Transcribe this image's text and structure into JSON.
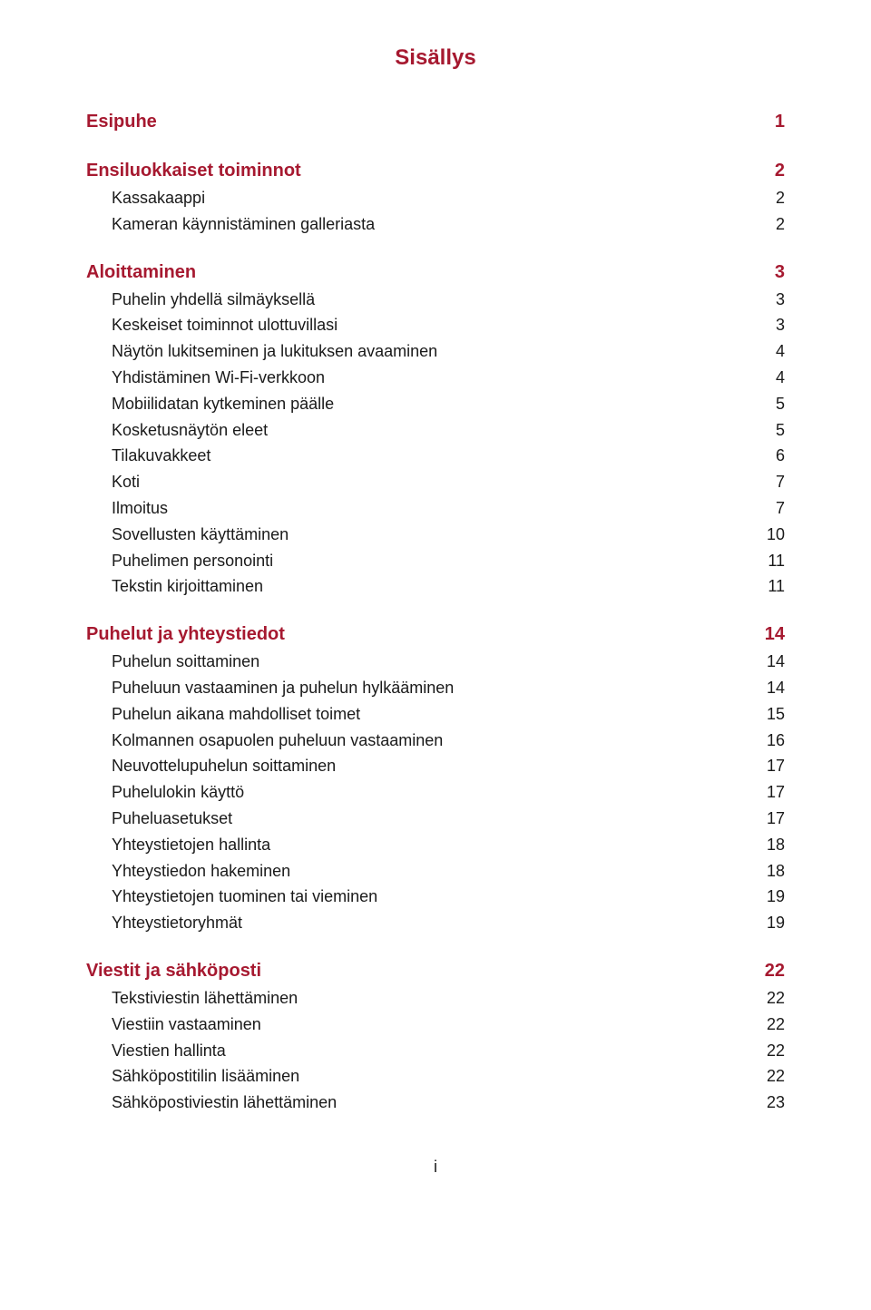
{
  "title": "Sisällys",
  "title_color": "#a61930",
  "title_fontsize": 24,
  "title_weight": "bold",
  "heading_color": "#a61930",
  "heading_fontsize": 20,
  "heading_weight": "bold",
  "body_color": "#1a1a1a",
  "body_fontsize": 18,
  "body_weight": "normal",
  "leader_color": "#1a1a1a",
  "footer_text": "i",
  "footer_color": "#1a1a1a",
  "footer_fontsize": 18,
  "entries": [
    {
      "label": "Esipuhe",
      "page": "1",
      "level": 0,
      "style": "heading"
    },
    {
      "gap": true
    },
    {
      "label": "Ensiluokkaiset toiminnot",
      "page": "2",
      "level": 0,
      "style": "heading"
    },
    {
      "label": "Kassakaappi",
      "page": "2",
      "level": 1,
      "style": "body"
    },
    {
      "label": "Kameran käynnistäminen galleriasta",
      "page": "2",
      "level": 1,
      "style": "body"
    },
    {
      "gap": true
    },
    {
      "label": "Aloittaminen",
      "page": "3",
      "level": 0,
      "style": "heading"
    },
    {
      "label": "Puhelin yhdellä silmäyksellä",
      "page": "3",
      "level": 1,
      "style": "body"
    },
    {
      "label": "Keskeiset toiminnot ulottuvillasi",
      "page": "3",
      "level": 1,
      "style": "body"
    },
    {
      "label": "Näytön lukitseminen ja lukituksen avaaminen",
      "page": "4",
      "level": 1,
      "style": "body"
    },
    {
      "label": "Yhdistäminen Wi-Fi-verkkoon",
      "page": "4",
      "level": 1,
      "style": "body"
    },
    {
      "label": "Mobiilidatan kytkeminen päälle",
      "page": "5",
      "level": 1,
      "style": "body"
    },
    {
      "label": "Kosketusnäytön eleet",
      "page": "5",
      "level": 1,
      "style": "body"
    },
    {
      "label": "Tilakuvakkeet",
      "page": "6",
      "level": 1,
      "style": "body"
    },
    {
      "label": "Koti",
      "page": "7",
      "level": 1,
      "style": "body"
    },
    {
      "label": "Ilmoitus",
      "page": "7",
      "level": 1,
      "style": "body"
    },
    {
      "label": "Sovellusten käyttäminen",
      "page": "10",
      "level": 1,
      "style": "body"
    },
    {
      "label": "Puhelimen personointi",
      "page": "11",
      "level": 1,
      "style": "body"
    },
    {
      "label": "Tekstin kirjoittaminen",
      "page": "11",
      "level": 1,
      "style": "body"
    },
    {
      "gap": true
    },
    {
      "label": "Puhelut ja yhteystiedot",
      "page": "14",
      "level": 0,
      "style": "heading"
    },
    {
      "label": "Puhelun soittaminen",
      "page": "14",
      "level": 1,
      "style": "body"
    },
    {
      "label": "Puheluun vastaaminen ja puhelun hylkääminen",
      "page": "14",
      "level": 1,
      "style": "body"
    },
    {
      "label": "Puhelun aikana mahdolliset toimet",
      "page": "15",
      "level": 1,
      "style": "body"
    },
    {
      "label": "Kolmannen osapuolen puheluun vastaaminen",
      "page": "16",
      "level": 1,
      "style": "body"
    },
    {
      "label": "Neuvottelupuhelun soittaminen",
      "page": "17",
      "level": 1,
      "style": "body"
    },
    {
      "label": "Puhelulokin käyttö",
      "page": "17",
      "level": 1,
      "style": "body"
    },
    {
      "label": "Puheluasetukset",
      "page": "17",
      "level": 1,
      "style": "body"
    },
    {
      "label": "Yhteystietojen hallinta",
      "page": "18",
      "level": 1,
      "style": "body"
    },
    {
      "label": "Yhteystiedon hakeminen",
      "page": "18",
      "level": 1,
      "style": "body"
    },
    {
      "label": "Yhteystietojen tuominen tai vieminen",
      "page": "19",
      "level": 1,
      "style": "body"
    },
    {
      "label": "Yhteystietoryhmät",
      "page": "19",
      "level": 1,
      "style": "body"
    },
    {
      "gap": true
    },
    {
      "label": "Viestit ja sähköposti",
      "page": "22",
      "level": 0,
      "style": "heading"
    },
    {
      "label": "Tekstiviestin lähettäminen",
      "page": "22",
      "level": 1,
      "style": "body"
    },
    {
      "label": "Viestiin vastaaminen",
      "page": "22",
      "level": 1,
      "style": "body"
    },
    {
      "label": "Viestien hallinta",
      "page": "22",
      "level": 1,
      "style": "body"
    },
    {
      "label": "Sähköpostitilin lisääminen",
      "page": "22",
      "level": 1,
      "style": "body"
    },
    {
      "label": "Sähköpostiviestin lähettäminen",
      "page": "23",
      "level": 1,
      "style": "body"
    }
  ]
}
